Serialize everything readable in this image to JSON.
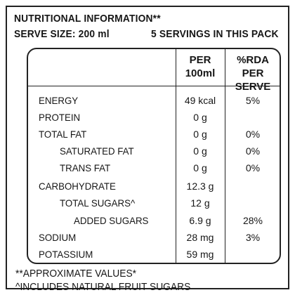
{
  "header": {
    "title": "NUTRITIONAL INFORMATION**",
    "serve_size": "SERVE SIZE: 200 ml",
    "servings": "5 SERVINGS IN THIS PACK"
  },
  "columns": {
    "per_line1": "PER",
    "per_line2": "100ml",
    "rda_line1": "%RDA",
    "rda_line2": "PER SERVE"
  },
  "rows": [
    {
      "name": "ENERGY",
      "value": "49 kcal",
      "rda": "5%"
    },
    {
      "name": "PROTEIN",
      "value": "0 g",
      "rda": ""
    },
    {
      "name": "TOTAL FAT",
      "value": "0 g",
      "rda": "0%"
    },
    {
      "name": "SATURATED FAT",
      "value": "0 g",
      "rda": "0%"
    },
    {
      "name": "TRANS FAT",
      "value": "0 g",
      "rda": "0%"
    },
    {
      "name": "CARBOHYDRATE",
      "value": "12.3 g",
      "rda": ""
    },
    {
      "name": "TOTAL SUGARS^",
      "value": "12 g",
      "rda": ""
    },
    {
      "name": "ADDED SUGARS",
      "value": "6.9 g",
      "rda": "28%"
    },
    {
      "name": "SODIUM",
      "value": "28 mg",
      "rda": "3%"
    },
    {
      "name": "POTASSIUM",
      "value": "59 mg",
      "rda": ""
    }
  ],
  "footer": {
    "approx": "**APPROXIMATE VALUES*",
    "includes": "^INCLUDES NATURAL FRUIT SUGARS"
  }
}
